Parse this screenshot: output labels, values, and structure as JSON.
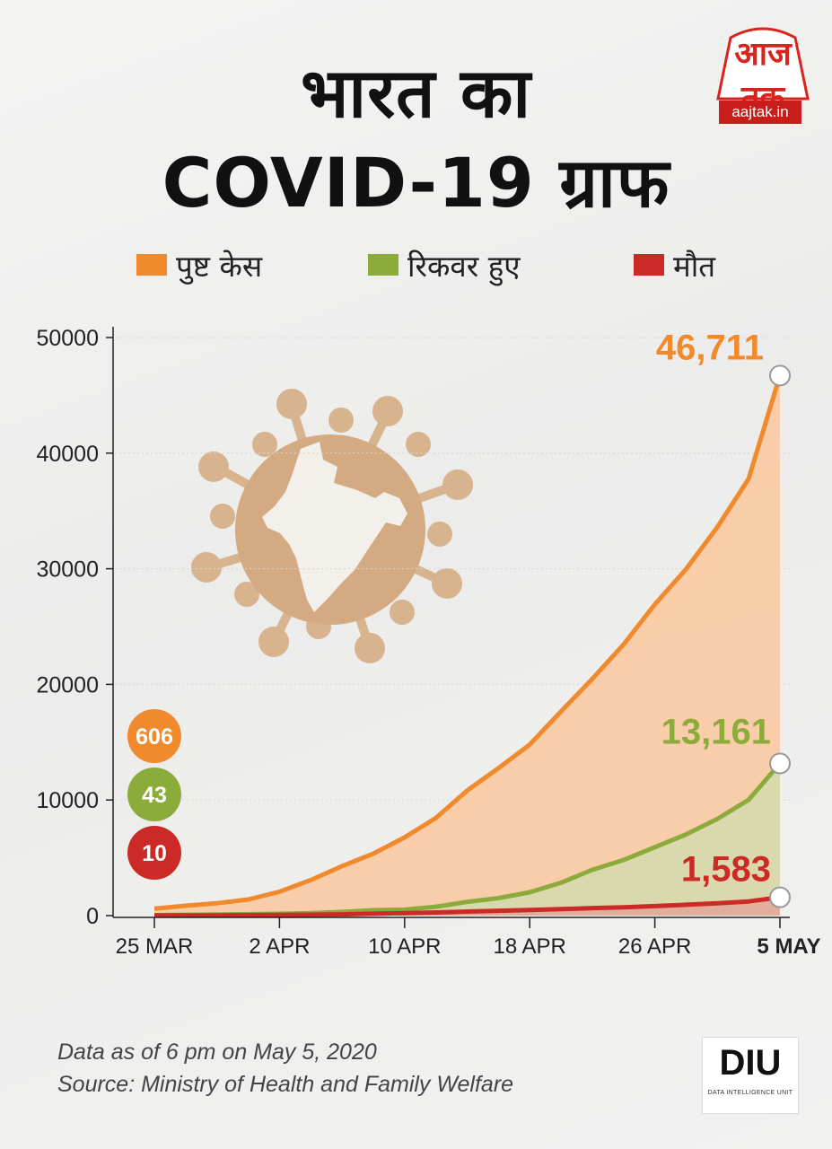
{
  "title": {
    "line1": "भारत का",
    "line2": "COVID-19 ग्राफ"
  },
  "logo": {
    "text": "आज तक",
    "url": "aajtak.in"
  },
  "legend": [
    {
      "label": "पुष्ट केस",
      "color": "#f08a2c"
    },
    {
      "label": "रिकवर हुए",
      "color": "#8bab3a"
    },
    {
      "label": "मौत",
      "color": "#cc2a26"
    }
  ],
  "chart_data": {
    "type": "area",
    "title": "भारत का COVID-19 ग्राफ",
    "xlabel": "",
    "ylabel": "",
    "ylim": [
      0,
      50000
    ],
    "y_ticks": [
      "50000",
      "40000",
      "30000",
      "20000",
      "10000",
      "0"
    ],
    "x_ticks": [
      "25 MAR",
      "2 APR",
      "10 APR",
      "18 APR",
      "26 APR",
      "5 MAY"
    ],
    "x_ticks_bold_last": true,
    "x": [
      "25 MAR",
      "27 MAR",
      "29 MAR",
      "31 MAR",
      "2 APR",
      "4 APR",
      "6 APR",
      "8 APR",
      "10 APR",
      "12 APR",
      "14 APR",
      "16 APR",
      "18 APR",
      "20 APR",
      "22 APR",
      "24 APR",
      "26 APR",
      "28 APR",
      "30 APR",
      "2 MAY",
      "5 MAY"
    ],
    "series": [
      {
        "name": "पुष्ट केस",
        "color": "#f08a2c",
        "values": [
          606,
          853,
          1071,
          1397,
          2069,
          3072,
          4281,
          5360,
          6761,
          8447,
          10815,
          12759,
          14792,
          17656,
          20471,
          23452,
          26917,
          29974,
          33610,
          37776,
          46711
        ]
      },
      {
        "name": "रिकवर हुए",
        "color": "#8bab3a",
        "values": [
          43,
          67,
          100,
          124,
          156,
          213,
          318,
          468,
          516,
          765,
          1190,
          1515,
          2015,
          2842,
          3959,
          4813,
          5914,
          7028,
          8373,
          10018,
          13161
        ]
      },
      {
        "name": "मौत",
        "color": "#cc2a26",
        "values": [
          10,
          20,
          27,
          35,
          53,
          75,
          111,
          160,
          206,
          273,
          353,
          420,
          488,
          559,
          652,
          723,
          826,
          937,
          1075,
          1223,
          1583
        ]
      }
    ],
    "start_labels": [
      "606",
      "43",
      "10"
    ],
    "end_labels": [
      "46,711",
      "13,161",
      "1,583"
    ]
  },
  "footer": {
    "line1": "Data as of 6 pm on May 5, 2020",
    "line2": "Source: Ministry of Health and Family Welfare"
  },
  "badge": {
    "text": "DIU",
    "subtitle": "DATA INTELLIGENCE UNIT"
  }
}
